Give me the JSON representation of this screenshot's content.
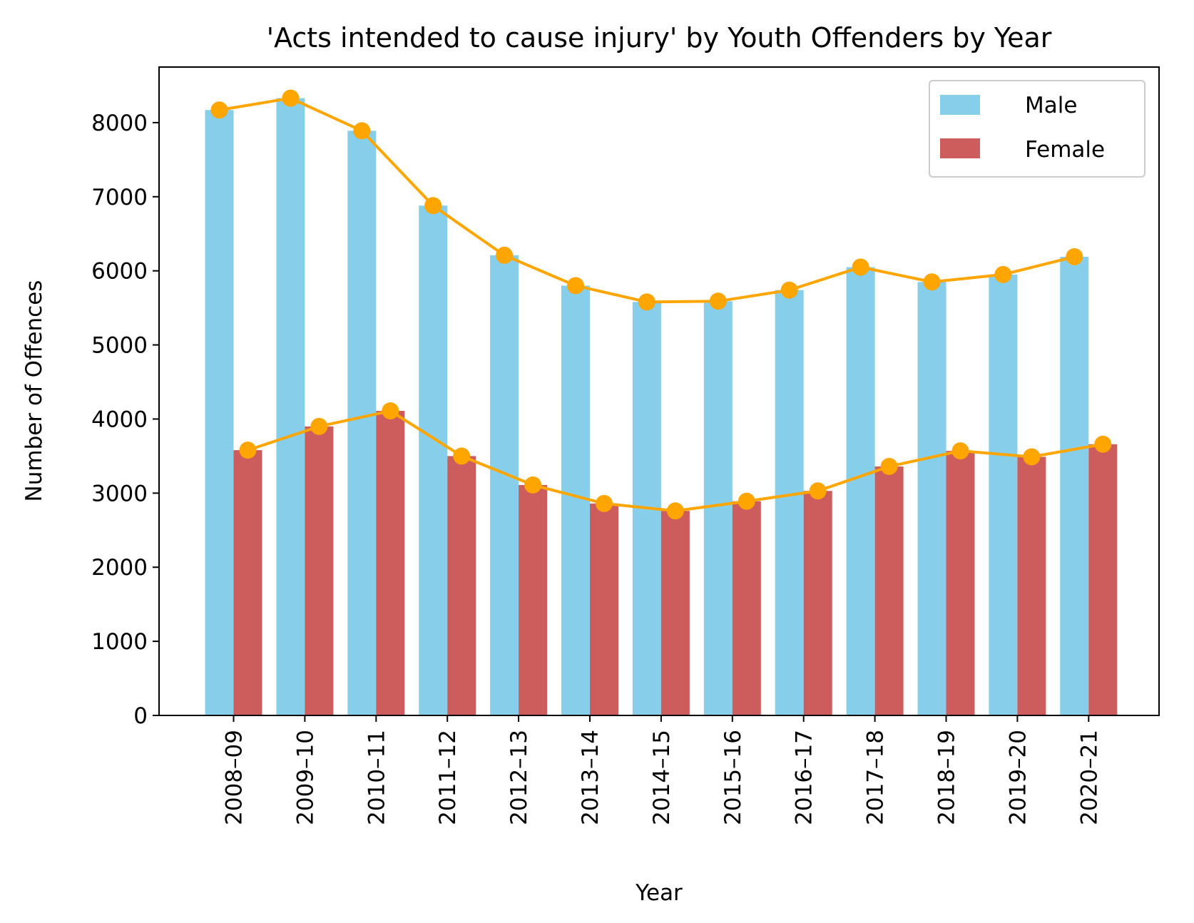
{
  "chart_data": {
    "type": "bar",
    "title": "'Acts intended to cause injury' by Youth Offenders by Year",
    "xlabel": "Year",
    "ylabel": "Number of Offences",
    "ylim": [
      0,
      8750
    ],
    "yticks": [
      "0",
      "1000",
      "2000",
      "3000",
      "4000",
      "5000",
      "6000",
      "7000",
      "8000"
    ],
    "categories": [
      "2008–09",
      "2009–10",
      "2010–11",
      "2011–12",
      "2012–13",
      "2013–14",
      "2014–15",
      "2015–16",
      "2016–17",
      "2017–18",
      "2018–19",
      "2019–20",
      "2020–21"
    ],
    "series": [
      {
        "name": "Male",
        "color": "#87CEEB",
        "values": [
          8170,
          8330,
          7890,
          6880,
          6210,
          5800,
          5580,
          5590,
          5740,
          6050,
          5850,
          5950,
          6190
        ]
      },
      {
        "name": "Female",
        "color": "#CD5C5C",
        "values": [
          3580,
          3900,
          4110,
          3500,
          3110,
          2860,
          2760,
          2890,
          3030,
          3360,
          3570,
          3490,
          3660
        ]
      }
    ],
    "line_overlay": {
      "color": "#FFA500",
      "marker": "circle"
    },
    "legend": {
      "position": "top-right"
    },
    "grid": false
  }
}
